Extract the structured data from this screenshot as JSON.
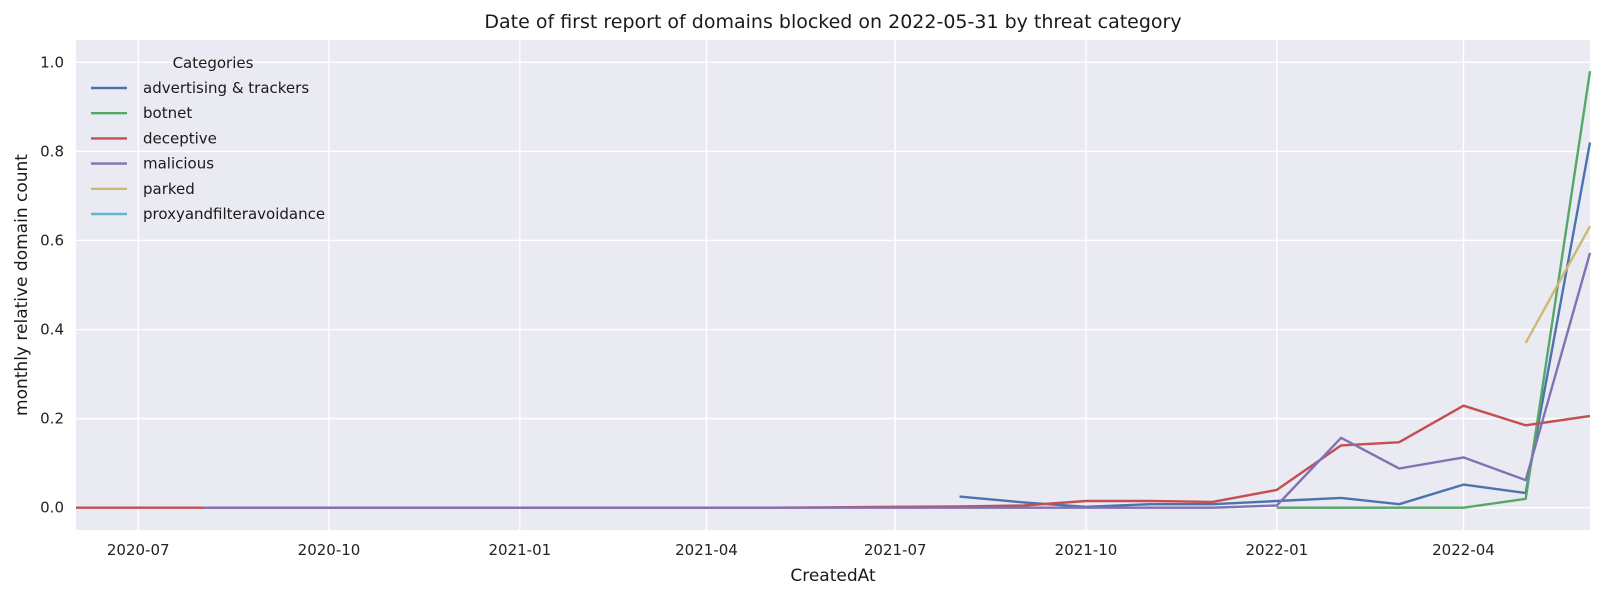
{
  "chart_data": {
    "type": "line",
    "title": "Date of first report of domains blocked on 2022-05-31 by threat category",
    "xlabel": "CreatedAt",
    "ylabel": "monthly relative domain count",
    "xlim": [
      "2020-06-01",
      "2022-06-01"
    ],
    "ylim": [
      -0.05,
      1.05
    ],
    "x_ticks": [
      "2020-07",
      "2020-10",
      "2021-01",
      "2021-04",
      "2021-07",
      "2021-10",
      "2022-01",
      "2022-04"
    ],
    "y_ticks": [
      "0.0",
      "0.2",
      "0.4",
      "0.6",
      "0.8",
      "1.0"
    ],
    "grid": true,
    "legend": {
      "title": "Categories",
      "position": "top-left"
    },
    "series": [
      {
        "name": "advertising & trackers",
        "color": "#4c72b0",
        "x": [
          "2021-08-01",
          "2021-09-01",
          "2021-10-01",
          "2021-11-01",
          "2021-12-01",
          "2022-01-01",
          "2022-02-01",
          "2022-03-01",
          "2022-04-01",
          "2022-05-01",
          "2022-06-01"
        ],
        "y": [
          0.025,
          0.012,
          0.002,
          0.008,
          0.008,
          0.015,
          0.022,
          0.008,
          0.052,
          0.033,
          0.82
        ]
      },
      {
        "name": "botnet",
        "color": "#55a868",
        "x": [
          "2022-01-01",
          "2022-02-01",
          "2022-03-01",
          "2022-04-01",
          "2022-05-01",
          "2022-06-01"
        ],
        "y": [
          0.0,
          0.0,
          0.0,
          0.0,
          0.02,
          0.98
        ]
      },
      {
        "name": "deceptive",
        "color": "#c44e52",
        "x": [
          "2020-06-01",
          "2020-07-01",
          "2020-08-01",
          "2020-09-01",
          "2020-10-01",
          "2020-11-01",
          "2020-12-01",
          "2021-01-01",
          "2021-02-01",
          "2021-03-01",
          "2021-04-01",
          "2021-05-01",
          "2021-06-01",
          "2021-07-01",
          "2021-08-01",
          "2021-09-01",
          "2021-10-01",
          "2021-11-01",
          "2021-12-01",
          "2022-01-01",
          "2022-02-01",
          "2022-03-01",
          "2022-04-01",
          "2022-05-01",
          "2022-06-01"
        ],
        "y": [
          0.0,
          0.0,
          0.0,
          0.0,
          0.0,
          0.0,
          0.0,
          0.0,
          0.0,
          0.0,
          0.0,
          0.0,
          0.001,
          0.002,
          0.003,
          0.005,
          0.015,
          0.015,
          0.013,
          0.04,
          0.14,
          0.147,
          0.229,
          0.185,
          0.206
        ]
      },
      {
        "name": "malicious",
        "color": "#8172b2",
        "x": [
          "2020-08-01",
          "2020-09-01",
          "2020-10-01",
          "2020-11-01",
          "2020-12-01",
          "2021-01-01",
          "2021-02-01",
          "2021-03-01",
          "2021-04-01",
          "2021-05-01",
          "2021-06-01",
          "2021-07-01",
          "2021-08-01",
          "2021-09-01",
          "2021-10-01",
          "2021-11-01",
          "2021-12-01",
          "2022-01-01",
          "2022-02-01",
          "2022-03-01",
          "2022-04-01",
          "2022-05-01",
          "2022-06-01"
        ],
        "y": [
          0.0,
          0.0,
          0.0,
          0.0,
          0.0,
          0.0,
          0.0,
          0.0,
          0.0,
          0.0,
          0.0,
          0.0,
          0.0,
          0.0,
          0.0,
          0.0,
          0.0,
          0.005,
          0.157,
          0.088,
          0.113,
          0.062,
          0.572
        ]
      },
      {
        "name": "parked",
        "color": "#ccb974",
        "x": [
          "2022-05-01",
          "2022-06-01"
        ],
        "y": [
          0.37,
          0.632
        ]
      },
      {
        "name": "proxyandfilteravoidance",
        "color": "#64b5cd",
        "x": [],
        "y": []
      }
    ]
  }
}
